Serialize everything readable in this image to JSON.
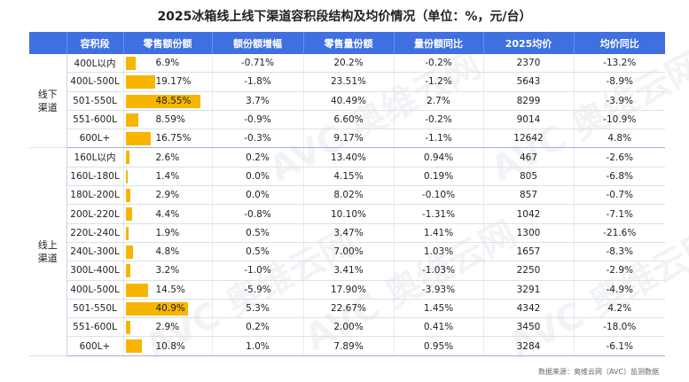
{
  "title": "2025冰箱线上线下渠道容积段结构及均价情况（单位：%，元/台）",
  "footnote": "数据来源：奥维云网（AVC）监测数据",
  "watermark": "AVC 奥维云网",
  "colors": {
    "header_bg": "#3f6fe0",
    "bar": "#f7b500"
  },
  "chart_data": {
    "type": "table",
    "columns": [
      "容积段",
      "零售额份额",
      "额份额增幅",
      "零售量份额",
      "量份额同比",
      "2025均价",
      "均价同比"
    ],
    "groups": [
      {
        "channel": "线下\n渠道",
        "rows": [
          {
            "segment": "400L以内",
            "sales_share": 6.9,
            "sales_share_text": "6.9%",
            "share_change": "-0.71%",
            "volume_share": "20.2%",
            "volume_yoy": "-0.2%",
            "avg_price": "2370",
            "price_yoy": "-13.2%"
          },
          {
            "segment": "400L-500L",
            "sales_share": 19.17,
            "sales_share_text": "19.17%",
            "share_change": "-1.8%",
            "volume_share": "23.51%",
            "volume_yoy": "-1.2%",
            "avg_price": "5643",
            "price_yoy": "-8.9%"
          },
          {
            "segment": "501-550L",
            "sales_share": 48.55,
            "sales_share_text": "48.55%",
            "share_change": "3.7%",
            "volume_share": "40.49%",
            "volume_yoy": "2.7%",
            "avg_price": "8299",
            "price_yoy": "-3.9%"
          },
          {
            "segment": "551-600L",
            "sales_share": 8.59,
            "sales_share_text": "8.59%",
            "share_change": "-0.9%",
            "volume_share": "6.60%",
            "volume_yoy": "-0.2%",
            "avg_price": "9014",
            "price_yoy": "-10.9%"
          },
          {
            "segment": "600L+",
            "sales_share": 16.75,
            "sales_share_text": "16.75%",
            "share_change": "-0.3%",
            "volume_share": "9.17%",
            "volume_yoy": "-1.1%",
            "avg_price": "12642",
            "price_yoy": "4.8%"
          }
        ]
      },
      {
        "channel": "线上\n渠道",
        "rows": [
          {
            "segment": "160L以内",
            "sales_share": 2.6,
            "sales_share_text": "2.6%",
            "share_change": "0.2%",
            "volume_share": "13.40%",
            "volume_yoy": "0.94%",
            "avg_price": "467",
            "price_yoy": "-2.6%"
          },
          {
            "segment": "160L-180L",
            "sales_share": 1.4,
            "sales_share_text": "1.4%",
            "share_change": "0.0%",
            "volume_share": "4.15%",
            "volume_yoy": "0.19%",
            "avg_price": "805",
            "price_yoy": "-6.8%"
          },
          {
            "segment": "180L-200L",
            "sales_share": 2.9,
            "sales_share_text": "2.9%",
            "share_change": "0.0%",
            "volume_share": "8.02%",
            "volume_yoy": "-0.10%",
            "avg_price": "857",
            "price_yoy": "-0.7%"
          },
          {
            "segment": "200L-220L",
            "sales_share": 4.4,
            "sales_share_text": "4.4%",
            "share_change": "-0.8%",
            "volume_share": "10.10%",
            "volume_yoy": "-1.31%",
            "avg_price": "1042",
            "price_yoy": "-7.1%"
          },
          {
            "segment": "220L-240L",
            "sales_share": 1.9,
            "sales_share_text": "1.9%",
            "share_change": "0.5%",
            "volume_share": "3.47%",
            "volume_yoy": "1.41%",
            "avg_price": "1300",
            "price_yoy": "-21.6%"
          },
          {
            "segment": "240L-300L",
            "sales_share": 4.8,
            "sales_share_text": "4.8%",
            "share_change": "0.5%",
            "volume_share": "7.00%",
            "volume_yoy": "1.03%",
            "avg_price": "1657",
            "price_yoy": "-8.3%"
          },
          {
            "segment": "300L-400L",
            "sales_share": 3.2,
            "sales_share_text": "3.2%",
            "share_change": "-1.0%",
            "volume_share": "3.41%",
            "volume_yoy": "-1.03%",
            "avg_price": "2250",
            "price_yoy": "-2.9%"
          },
          {
            "segment": "400L-500L",
            "sales_share": 14.5,
            "sales_share_text": "14.5%",
            "share_change": "-5.9%",
            "volume_share": "17.90%",
            "volume_yoy": "-3.93%",
            "avg_price": "3291",
            "price_yoy": "-4.9%"
          },
          {
            "segment": "501-550L",
            "sales_share": 40.9,
            "sales_share_text": "40.9%",
            "share_change": "5.3%",
            "volume_share": "22.67%",
            "volume_yoy": "1.45%",
            "avg_price": "4342",
            "price_yoy": "4.2%"
          },
          {
            "segment": "551-600L",
            "sales_share": 2.9,
            "sales_share_text": "2.9%",
            "share_change": "0.2%",
            "volume_share": "2.00%",
            "volume_yoy": "0.41%",
            "avg_price": "3450",
            "price_yoy": "-18.0%"
          },
          {
            "segment": "600L+",
            "sales_share": 10.8,
            "sales_share_text": "10.8%",
            "share_change": "1.0%",
            "volume_share": "7.89%",
            "volume_yoy": "0.95%",
            "avg_price": "3284",
            "price_yoy": "-6.1%"
          }
        ]
      }
    ]
  }
}
